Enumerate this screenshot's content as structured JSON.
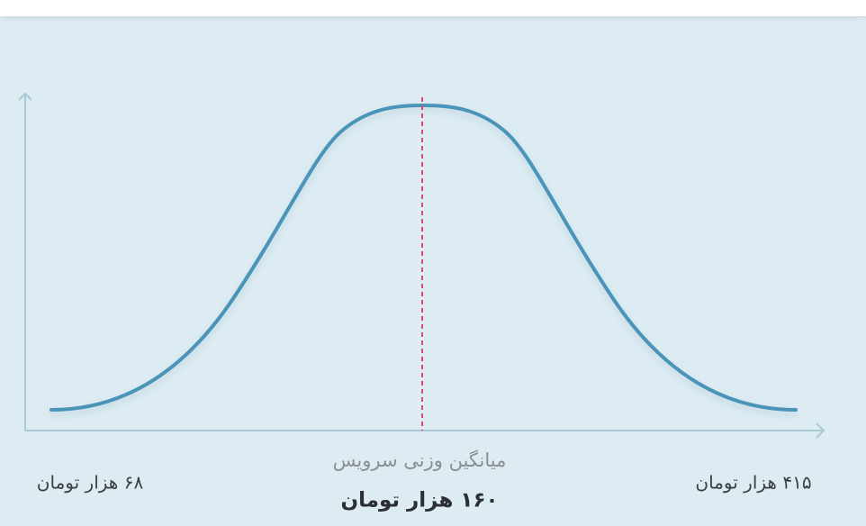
{
  "labels": {
    "min": "۶۸ هزار تومان",
    "max": "۴۱۵ هزار تومان",
    "average_caption": "میانگین وزنی سرویس",
    "average": "۱۶۰ هزار تومان"
  }
}
